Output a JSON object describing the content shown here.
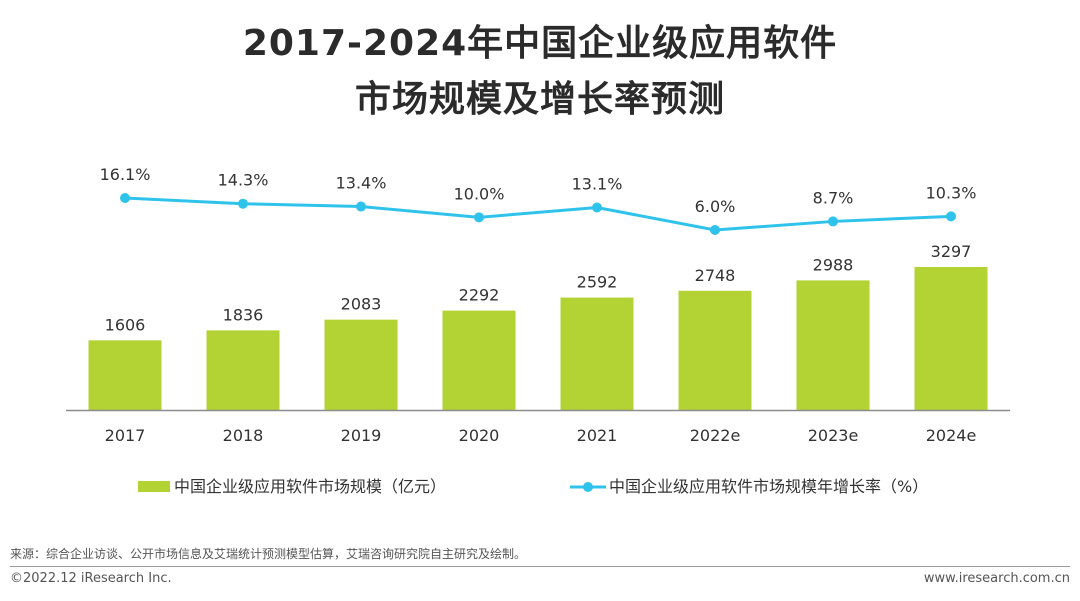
{
  "header": {
    "title_line_1": "2017-2024年中国企业级应用软件",
    "title_line_2": "市场规模及增长率预测"
  },
  "chart_data": {
    "type": "bar+line",
    "categories": [
      "2017",
      "2018",
      "2019",
      "2020",
      "2021",
      "2022e",
      "2023e",
      "2024e"
    ],
    "series": [
      {
        "name": "中国企业级应用软件市场规模（亿元）",
        "kind": "bar",
        "color": "#b3d334",
        "values": [
          1606,
          1836,
          2083,
          2292,
          2592,
          2748,
          2988,
          3297
        ],
        "labels": [
          "1606",
          "1836",
          "2083",
          "2292",
          "2592",
          "2748",
          "2988",
          "3297"
        ]
      },
      {
        "name": "中国企业级应用软件市场规模年增长率（%）",
        "kind": "line",
        "color": "#2fc3ec",
        "values": [
          16.1,
          14.3,
          13.4,
          10.0,
          13.1,
          6.0,
          8.7,
          10.3
        ],
        "labels": [
          "16.1%",
          "14.3%",
          "13.4%",
          "10.0%",
          "13.1%",
          "6.0%",
          "8.7%",
          "10.3%"
        ]
      }
    ],
    "bar_axis_range": [
      0,
      3500
    ],
    "line_axis_range": [
      0,
      50
    ],
    "grid": false,
    "legend_position": "bottom"
  },
  "footer": {
    "source": "来源：综合企业访谈、公开市场信息及艾瑞统计预测模型估算，艾瑞咨询研究院自主研究及绘制。",
    "copyright": "©2022.12 iResearch Inc.",
    "website": "www.iresearch.com.cn"
  }
}
